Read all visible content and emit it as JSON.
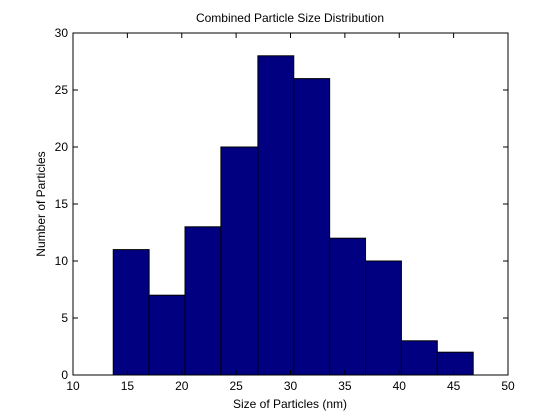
{
  "chart_data": {
    "type": "bar",
    "title": "Combined Particle Size Distribution",
    "xlabel": "Size of Particles (nm)",
    "ylabel": "Number of Particles",
    "xlim": [
      10,
      50
    ],
    "ylim": [
      0,
      30
    ],
    "xticks": [
      "10",
      "15",
      "20",
      "25",
      "30",
      "35",
      "40",
      "45",
      "50"
    ],
    "yticks": [
      "0",
      "5",
      "10",
      "15",
      "20",
      "25",
      "30"
    ],
    "bin_edges": [
      13.7,
      17.0,
      20.3,
      23.6,
      27.0,
      30.3,
      33.6,
      36.9,
      40.2,
      43.5,
      46.8
    ],
    "values": [
      11,
      7,
      13,
      20,
      28,
      26,
      12,
      10,
      3,
      2
    ],
    "bar_color": "#000080",
    "grid": false,
    "legend": "none"
  }
}
